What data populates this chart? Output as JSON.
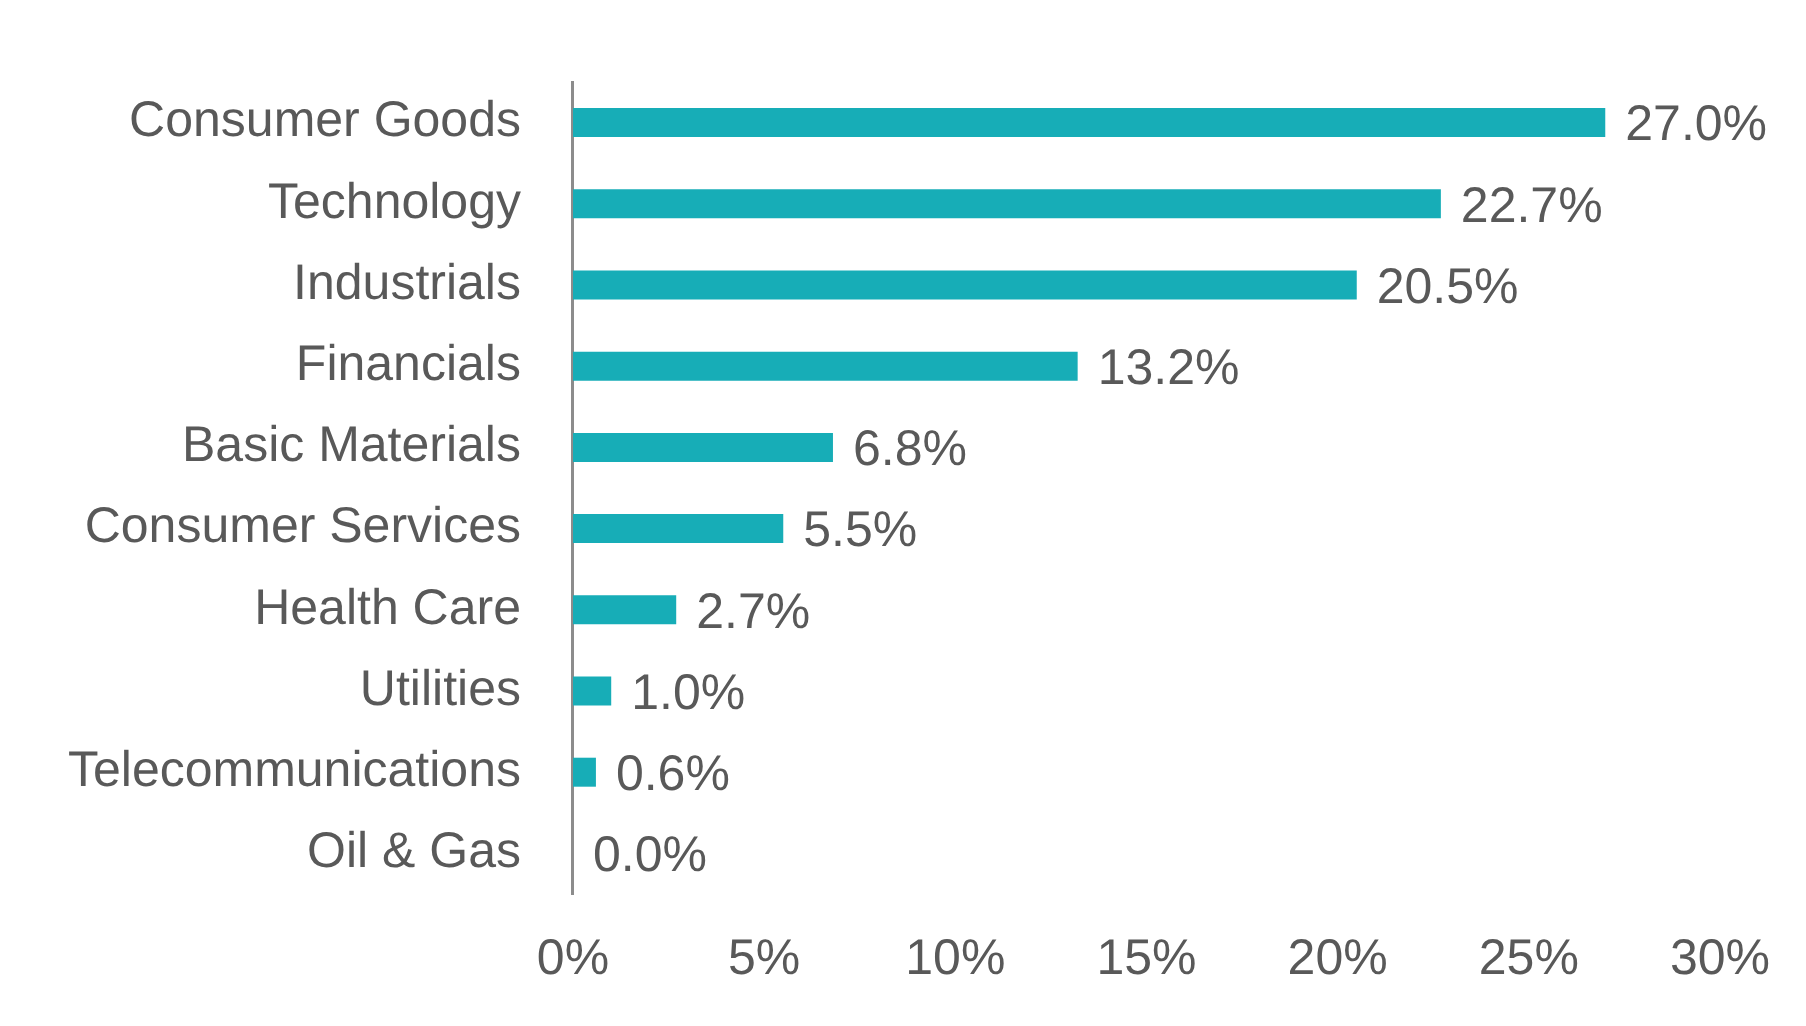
{
  "chart_data": {
    "type": "bar",
    "orientation": "horizontal",
    "categories": [
      "Consumer Goods",
      "Technology",
      "Industrials",
      "Financials",
      "Basic Materials",
      "Consumer Services",
      "Health Care",
      "Utilities",
      "Telecommunications",
      "Oil & Gas"
    ],
    "values": [
      27.0,
      22.7,
      20.5,
      13.2,
      6.8,
      5.5,
      2.7,
      1.0,
      0.6,
      0.0
    ],
    "value_labels": [
      "27.0%",
      "22.7%",
      "20.5%",
      "13.2%",
      "6.8%",
      "5.5%",
      "2.7%",
      "1.0%",
      "0.6%",
      "0.0%"
    ],
    "color": "#17adb7",
    "xlim": [
      0,
      30
    ],
    "xticks": [
      {
        "value": 0,
        "label": "0%"
      },
      {
        "value": 5,
        "label": "5%"
      },
      {
        "value": 10,
        "label": "10%"
      },
      {
        "value": 15,
        "label": "15%"
      },
      {
        "value": 20,
        "label": "20%"
      },
      {
        "value": 25,
        "label": "25%"
      },
      {
        "value": 30,
        "label": "30%"
      }
    ],
    "grid": false,
    "legend": false
  }
}
